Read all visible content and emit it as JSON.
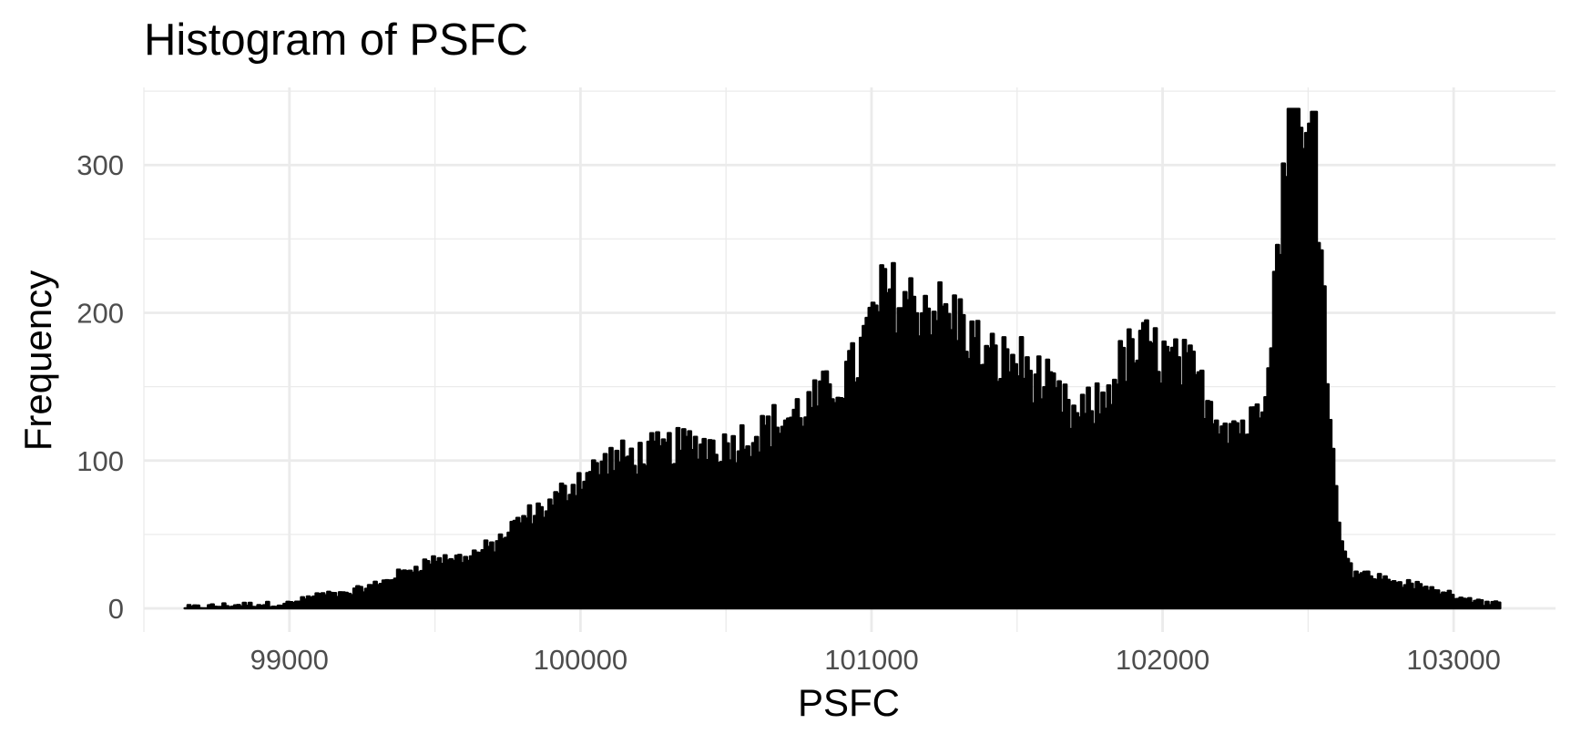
{
  "chart_data": {
    "type": "bar",
    "title": "Histogram of PSFC",
    "xlabel": "PSFC",
    "ylabel": "Frequency",
    "xlim": [
      98500,
      103350
    ],
    "ylim": [
      -16,
      355
    ],
    "x_ticks": [
      99000,
      100000,
      101000,
      102000,
      103000
    ],
    "x_tick_labels": [
      "99000",
      "100000",
      "101000",
      "102000",
      "103000"
    ],
    "y_ticks": [
      0,
      100,
      200,
      300
    ],
    "y_tick_labels": [
      "0",
      "100",
      "200",
      "300"
    ],
    "grid": true,
    "legend": "none",
    "bar_color": "#000000",
    "anchors": [
      [
        98640,
        0
      ],
      [
        98800,
        2
      ],
      [
        99000,
        3
      ],
      [
        99100,
        9
      ],
      [
        99200,
        10
      ],
      [
        99300,
        16
      ],
      [
        99400,
        25
      ],
      [
        99500,
        33
      ],
      [
        99600,
        34
      ],
      [
        99700,
        42
      ],
      [
        99800,
        60
      ],
      [
        99900,
        70
      ],
      [
        99950,
        80
      ],
      [
        100000,
        88
      ],
      [
        100100,
        100
      ],
      [
        100200,
        103
      ],
      [
        100300,
        108
      ],
      [
        100400,
        112
      ],
      [
        100500,
        110
      ],
      [
        100600,
        118
      ],
      [
        100700,
        127
      ],
      [
        100800,
        138
      ],
      [
        100900,
        155
      ],
      [
        100950,
        165
      ],
      [
        101000,
        195
      ],
      [
        101050,
        215
      ],
      [
        101100,
        210
      ],
      [
        101200,
        205
      ],
      [
        101300,
        195
      ],
      [
        101400,
        168
      ],
      [
        101500,
        168
      ],
      [
        101600,
        150
      ],
      [
        101700,
        128
      ],
      [
        101800,
        140
      ],
      [
        101850,
        165
      ],
      [
        101900,
        172
      ],
      [
        101950,
        178
      ],
      [
        102000,
        170
      ],
      [
        102100,
        160
      ],
      [
        102200,
        128
      ],
      [
        102300,
        123
      ],
      [
        102350,
        150
      ],
      [
        102400,
        250
      ],
      [
        102440,
        320
      ],
      [
        102470,
        300
      ],
      [
        102500,
        310
      ],
      [
        102530,
        300
      ],
      [
        102560,
        190
      ],
      [
        102600,
        60
      ],
      [
        102650,
        25
      ],
      [
        102700,
        23
      ],
      [
        102800,
        18
      ],
      [
        102900,
        14
      ],
      [
        103000,
        9
      ],
      [
        103100,
        4
      ],
      [
        103160,
        2
      ]
    ],
    "bin_width": 10,
    "x_start": 98640,
    "x_end": 103160
  }
}
